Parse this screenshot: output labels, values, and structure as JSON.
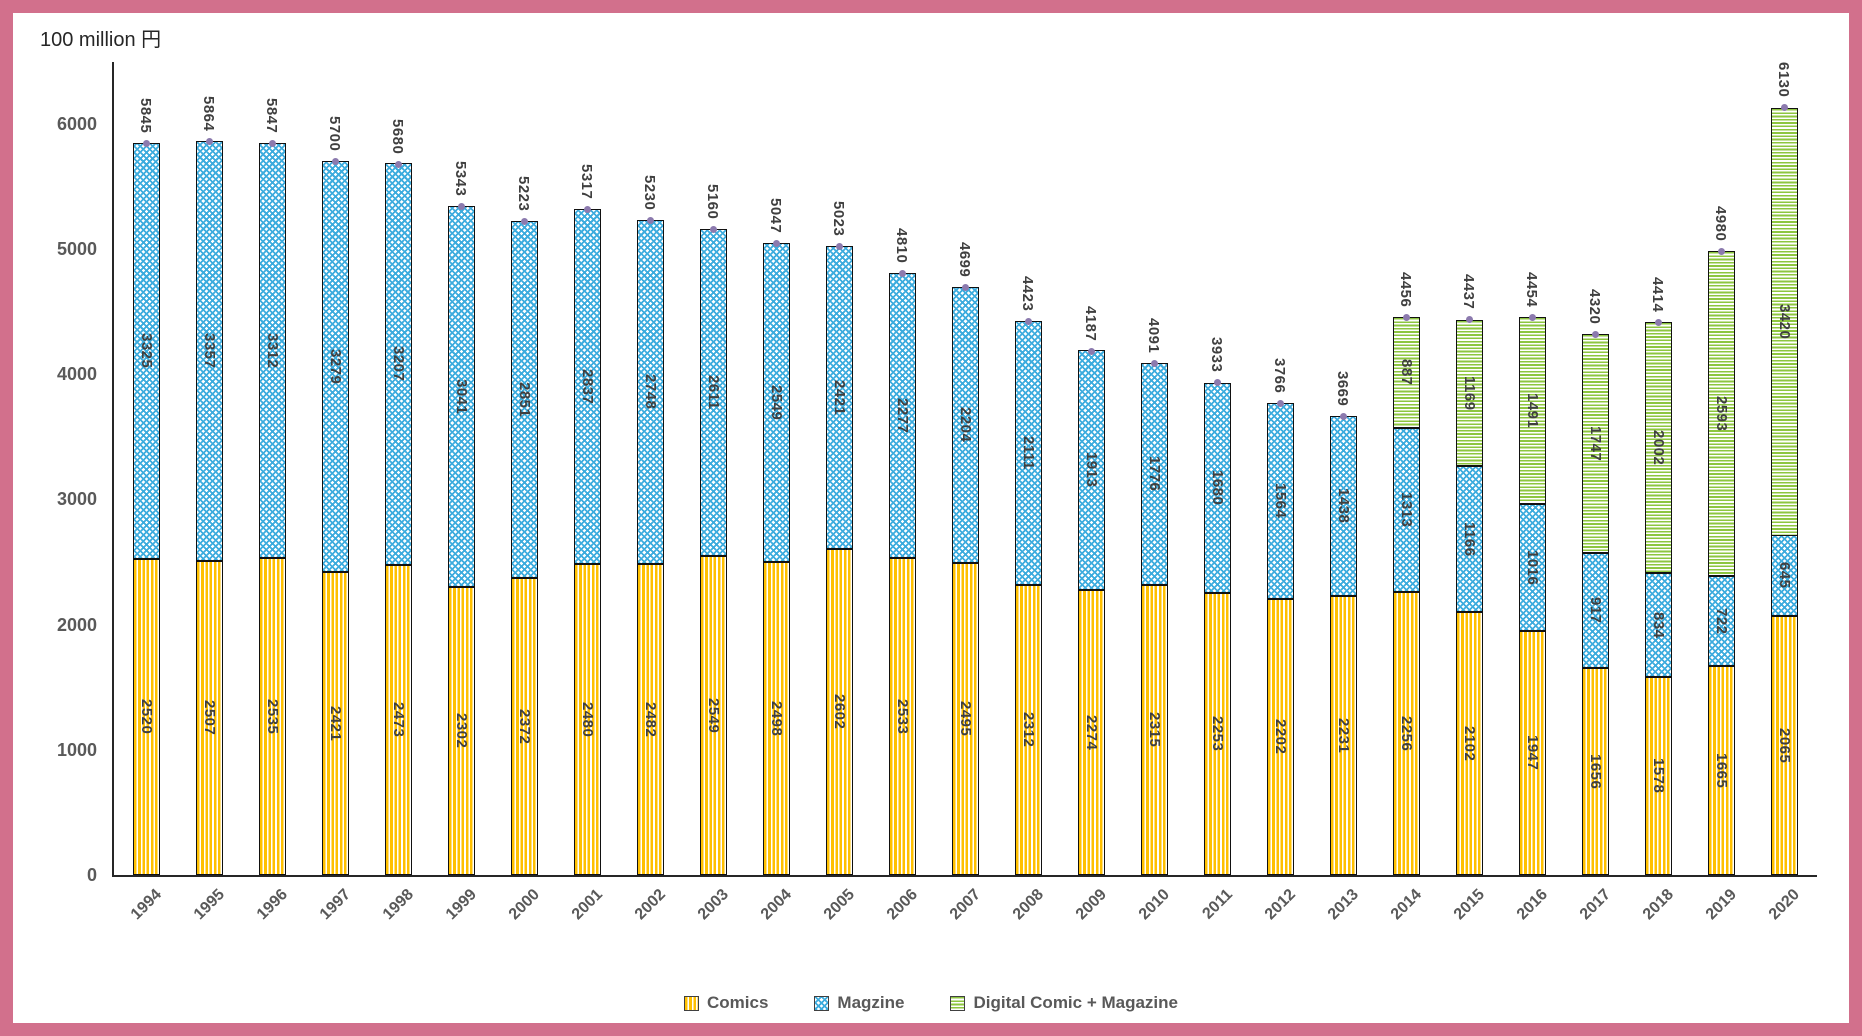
{
  "title": "100 million 円",
  "chart_data": {
    "type": "bar",
    "stacked": true,
    "title": "100 million 円",
    "xlabel": "",
    "ylabel": "100 million 円",
    "grid": false,
    "legend_position": "bottom",
    "y_ticks": [
      0,
      1000,
      2000,
      3000,
      4000,
      5000,
      6000
    ],
    "ylim": [
      0,
      6500
    ],
    "marker_color": "#8C7AAE",
    "categories": [
      "1994",
      "1995",
      "1996",
      "1997",
      "1998",
      "1999",
      "2000",
      "2001",
      "2002",
      "2003",
      "2004",
      "2005",
      "2006",
      "2007",
      "2008",
      "2009",
      "2010",
      "2011",
      "2012",
      "2013",
      "2014",
      "2015",
      "2016",
      "2017",
      "2018",
      "2019",
      "2020"
    ],
    "series": [
      {
        "name": "Comics",
        "color": "#FFC000",
        "pattern": "vertical-stripes",
        "values": [
          2520,
          2507,
          2535,
          2421,
          2473,
          2302,
          2372,
          2480,
          2482,
          2549,
          2498,
          2602,
          2533,
          2495,
          2312,
          2274,
          2315,
          2253,
          2202,
          2231,
          2256,
          2102,
          1947,
          1656,
          1578,
          1665,
          2065
        ]
      },
      {
        "name": "Magzine",
        "color": "#3DACDE",
        "pattern": "diagonal-crosshatch",
        "values": [
          3325,
          3357,
          3312,
          3279,
          3207,
          3041,
          2851,
          2837,
          2748,
          2611,
          2549,
          2421,
          2277,
          2204,
          2111,
          1913,
          1776,
          1680,
          1564,
          1438,
          1313,
          1166,
          1016,
          917,
          834,
          722,
          645
        ]
      },
      {
        "name": "Digital Comic + Magazine",
        "color": "#8DC63F",
        "pattern": "horizontal-stripes",
        "values": [
          null,
          null,
          null,
          null,
          null,
          null,
          null,
          null,
          null,
          null,
          null,
          null,
          null,
          null,
          null,
          null,
          null,
          null,
          null,
          null,
          887,
          1169,
          1491,
          1747,
          2002,
          2593,
          3420
        ]
      }
    ],
    "totals": [
      5845,
      5864,
      5847,
      5700,
      5680,
      5343,
      5223,
      5317,
      5230,
      5160,
      5047,
      5023,
      4810,
      4699,
      4423,
      4187,
      4091,
      3933,
      3766,
      3669,
      4456,
      4437,
      4454,
      4320,
      4414,
      4980,
      6130
    ]
  },
  "colors": {
    "frame": "#D2708C",
    "background": "#FFFFFF",
    "axis": "#262626",
    "label_text": "#3F3F3F",
    "axis_text": "#595959"
  }
}
